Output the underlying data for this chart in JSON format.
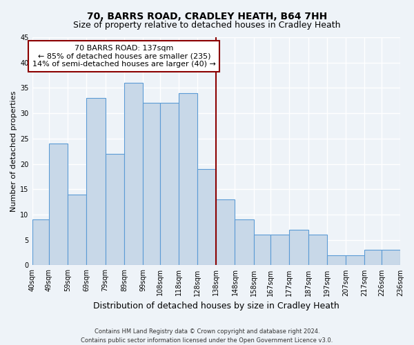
{
  "title": "70, BARRS ROAD, CRADLEY HEATH, B64 7HH",
  "subtitle": "Size of property relative to detached houses in Cradley Heath",
  "xlabel": "Distribution of detached houses by size in Cradley Heath",
  "ylabel": "Number of detached properties",
  "footer_line1": "Contains HM Land Registry data © Crown copyright and database right 2024.",
  "footer_line2": "Contains public sector information licensed under the Open Government Licence v3.0.",
  "annotation_line1": "70 BARRS ROAD: 137sqm",
  "annotation_line2": "← 85% of detached houses are smaller (235)",
  "annotation_line3": "14% of semi-detached houses are larger (40) →",
  "bin_edges": [
    40,
    49,
    59,
    69,
    79,
    89,
    99,
    108,
    118,
    128,
    138,
    148,
    158,
    167,
    177,
    187,
    197,
    207,
    217,
    226,
    236
  ],
  "bin_labels": [
    "40sqm",
    "49sqm",
    "59sqm",
    "69sqm",
    "79sqm",
    "89sqm",
    "99sqm",
    "108sqm",
    "118sqm",
    "128sqm",
    "138sqm",
    "148sqm",
    "158sqm",
    "167sqm",
    "177sqm",
    "187sqm",
    "197sqm",
    "207sqm",
    "217sqm",
    "226sqm",
    "236sqm"
  ],
  "values": [
    9,
    24,
    14,
    33,
    22,
    36,
    32,
    32,
    34,
    19,
    13,
    9,
    6,
    6,
    7,
    6,
    2,
    2,
    3,
    3
  ],
  "bar_color": "#c8d8e8",
  "bar_edge_color": "#5b9bd5",
  "vline_color": "#8b0000",
  "vline_x": 138,
  "ylim": [
    0,
    45
  ],
  "yticks": [
    0,
    5,
    10,
    15,
    20,
    25,
    30,
    35,
    40,
    45
  ],
  "background_color": "#eef3f8",
  "grid_color": "#ffffff",
  "annotation_box_color": "#8b0000",
  "title_fontsize": 10,
  "subtitle_fontsize": 9,
  "xlabel_fontsize": 9,
  "ylabel_fontsize": 8,
  "tick_fontsize": 7,
  "annotation_fontsize": 8,
  "footer_fontsize": 6
}
